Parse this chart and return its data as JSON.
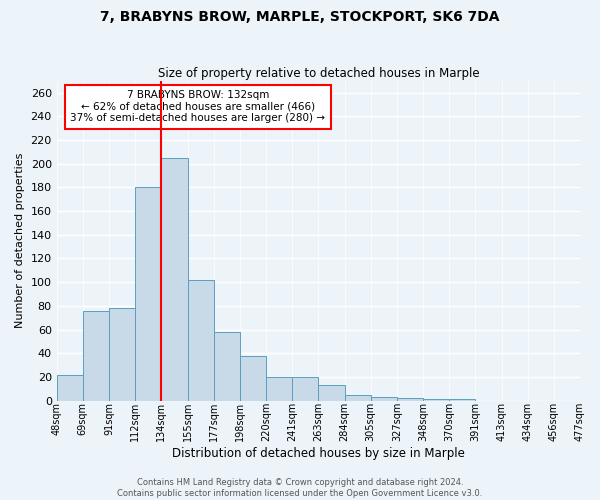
{
  "title": "7, BRABYNS BROW, MARPLE, STOCKPORT, SK6 7DA",
  "subtitle": "Size of property relative to detached houses in Marple",
  "xlabel": "Distribution of detached houses by size in Marple",
  "ylabel": "Number of detached properties",
  "bin_labels": [
    "48sqm",
    "69sqm",
    "91sqm",
    "112sqm",
    "134sqm",
    "155sqm",
    "177sqm",
    "198sqm",
    "220sqm",
    "241sqm",
    "263sqm",
    "284sqm",
    "305sqm",
    "327sqm",
    "348sqm",
    "370sqm",
    "391sqm",
    "413sqm",
    "434sqm",
    "456sqm",
    "477sqm"
  ],
  "bar_heights": [
    22,
    76,
    78,
    180,
    205,
    102,
    58,
    38,
    20,
    20,
    13,
    5,
    3,
    2,
    1,
    1,
    0,
    0,
    0,
    0
  ],
  "bar_color": "#c8d9e8",
  "bar_edge_color": "#5a9fc0",
  "property_line_bin": 4,
  "annotation_text": "7 BRABYNS BROW: 132sqm\n← 62% of detached houses are smaller (466)\n37% of semi-detached houses are larger (280) →",
  "annotation_box_color": "white",
  "annotation_box_edge": "red",
  "red_line_color": "red",
  "ylim": [
    0,
    270
  ],
  "yticks": [
    0,
    20,
    40,
    60,
    80,
    100,
    120,
    140,
    160,
    180,
    200,
    220,
    240,
    260
  ],
  "footer_line1": "Contains HM Land Registry data © Crown copyright and database right 2024.",
  "footer_line2": "Contains public sector information licensed under the Open Government Licence v3.0.",
  "background_color": "#edf4f9",
  "grid_color": "#ffffff"
}
